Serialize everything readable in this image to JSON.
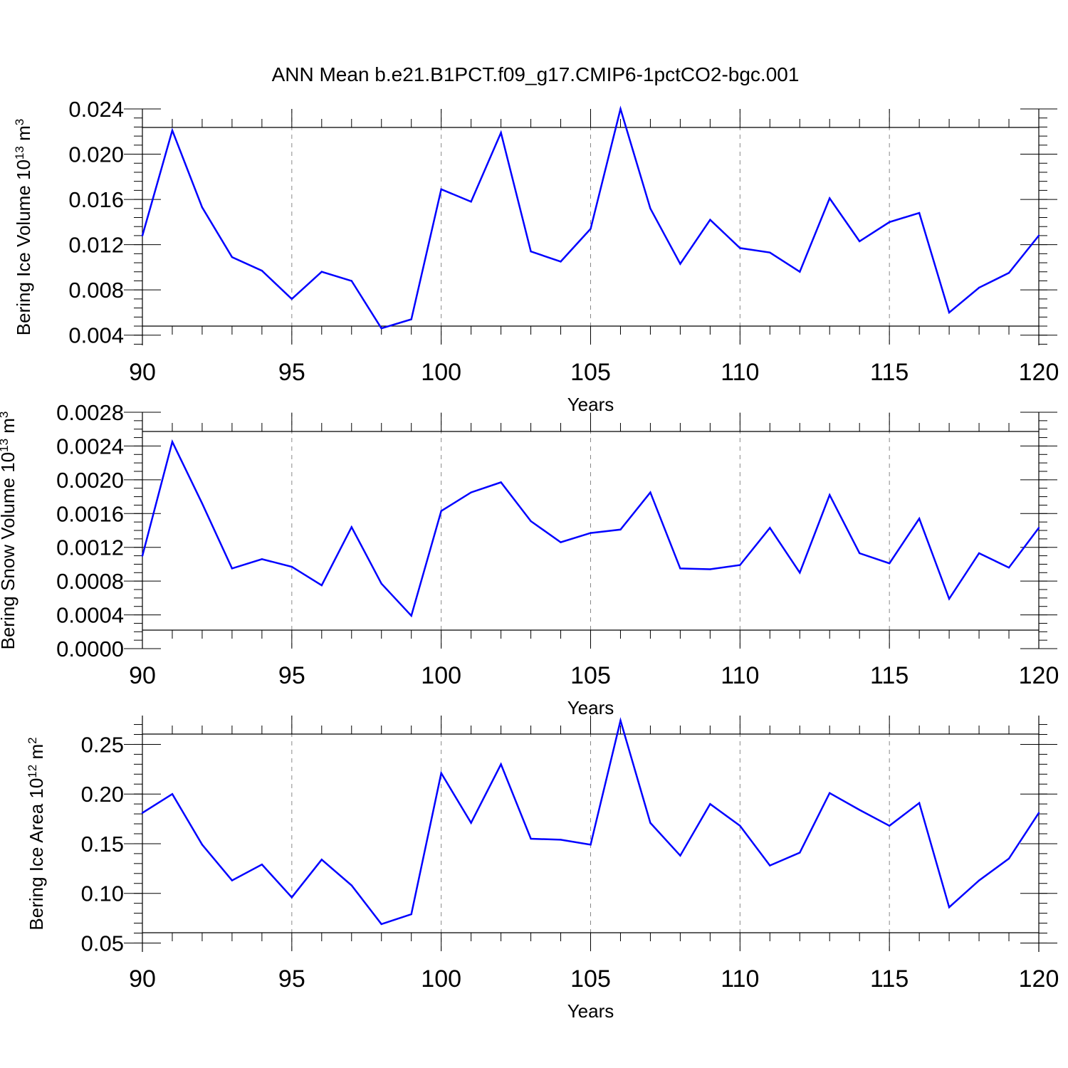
{
  "title": "ANN Mean b.e21.B1PCT.f09_g17.CMIP6-1pctCO2-bgc.001",
  "colors": {
    "line": "#0000ff",
    "axis": "#000000",
    "grid": "#888888"
  },
  "chart_data": [
    {
      "type": "line",
      "xlabel": "Years",
      "ylabel": {
        "main": "Bering Ice Volume 10",
        "exp": "13",
        "unit": " m",
        "unit_exp": "3"
      },
      "xlim": [
        90,
        120
      ],
      "ylim": [
        0.0031,
        0.024
      ],
      "xticks": [
        90,
        95,
        100,
        105,
        110,
        115,
        120
      ],
      "xtick_labels": [
        "90",
        "95",
        "100",
        "105",
        "110",
        "115",
        "120"
      ],
      "yticks": [
        0.004,
        0.008,
        0.012,
        0.016,
        0.02,
        0.024
      ],
      "ytick_labels": [
        "0.004",
        "0.008",
        "0.012",
        "0.016",
        "0.020",
        "0.024"
      ],
      "y_minor_step": 0.0008,
      "x": [
        90,
        91,
        92,
        93,
        94,
        95,
        96,
        97,
        98,
        99,
        100,
        101,
        102,
        103,
        104,
        105,
        106,
        107,
        108,
        109,
        110,
        111,
        112,
        113,
        114,
        115,
        116,
        117,
        118,
        119,
        120
      ],
      "values": [
        0.0128,
        0.0221,
        0.0153,
        0.0109,
        0.0097,
        0.0072,
        0.0096,
        0.0088,
        0.0046,
        0.0054,
        0.0169,
        0.0158,
        0.0219,
        0.0114,
        0.0105,
        0.0134,
        0.024,
        0.0152,
        0.0103,
        0.0142,
        0.0117,
        0.0113,
        0.0096,
        0.0161,
        0.0123,
        0.014,
        0.0148,
        0.006,
        0.0082,
        0.0095,
        0.0128
      ],
      "grid": "x-dashed"
    },
    {
      "type": "line",
      "xlabel": "Years",
      "ylabel": {
        "main": "Bering Snow Volume 10",
        "exp": "13",
        "unit": " m",
        "unit_exp": "3"
      },
      "xlim": [
        90,
        120
      ],
      "ylim": [
        0.0,
        0.0028
      ],
      "xticks": [
        90,
        95,
        100,
        105,
        110,
        115,
        120
      ],
      "xtick_labels": [
        "90",
        "95",
        "100",
        "105",
        "110",
        "115",
        "120"
      ],
      "yticks": [
        0.0,
        0.0004,
        0.0008,
        0.0012,
        0.0016,
        0.002,
        0.0024,
        0.0028
      ],
      "ytick_labels": [
        "0.0000",
        "0.0004",
        "0.0008",
        "0.0012",
        "0.0016",
        "0.0020",
        "0.0024",
        "0.0028"
      ],
      "y_minor_step": 0.0001,
      "x": [
        90,
        91,
        92,
        93,
        94,
        95,
        96,
        97,
        98,
        99,
        100,
        101,
        102,
        103,
        104,
        105,
        106,
        107,
        108,
        109,
        110,
        111,
        112,
        113,
        114,
        115,
        116,
        117,
        118,
        119,
        120
      ],
      "values": [
        0.0011,
        0.00245,
        0.00172,
        0.00095,
        0.00106,
        0.00097,
        0.00075,
        0.00144,
        0.00077,
        0.00039,
        0.00163,
        0.00185,
        0.00197,
        0.00151,
        0.00126,
        0.00137,
        0.00141,
        0.00185,
        0.00095,
        0.00094,
        0.00099,
        0.00143,
        0.0009,
        0.00182,
        0.00113,
        0.00101,
        0.00154,
        0.00059,
        0.00113,
        0.00096,
        0.00143
      ],
      "grid": "x-dashed"
    },
    {
      "type": "line",
      "xlabel": "Years",
      "ylabel": {
        "main": "Bering Ice Area 10",
        "exp": "12",
        "unit": " m",
        "unit_exp": "2"
      },
      "xlim": [
        90,
        120
      ],
      "ylim": [
        0.041,
        0.279
      ],
      "xticks": [
        90,
        95,
        100,
        105,
        110,
        115,
        120
      ],
      "xtick_labels": [
        "90",
        "95",
        "100",
        "105",
        "110",
        "115",
        "120"
      ],
      "yticks": [
        0.05,
        0.1,
        0.15,
        0.2,
        0.25
      ],
      "ytick_labels": [
        "0.05",
        "0.10",
        "0.15",
        "0.20",
        "0.25"
      ],
      "y_minor_step": 0.01,
      "x": [
        90,
        91,
        92,
        93,
        94,
        95,
        96,
        97,
        98,
        99,
        100,
        101,
        102,
        103,
        104,
        105,
        106,
        107,
        108,
        109,
        110,
        111,
        112,
        113,
        114,
        115,
        116,
        117,
        118,
        119,
        120
      ],
      "values": [
        0.181,
        0.2,
        0.149,
        0.113,
        0.129,
        0.096,
        0.134,
        0.108,
        0.069,
        0.079,
        0.221,
        0.171,
        0.23,
        0.155,
        0.154,
        0.149,
        0.274,
        0.171,
        0.138,
        0.19,
        0.168,
        0.128,
        0.141,
        0.201,
        0.184,
        0.168,
        0.191,
        0.086,
        0.113,
        0.135,
        0.181
      ],
      "grid": "x-dashed"
    }
  ]
}
